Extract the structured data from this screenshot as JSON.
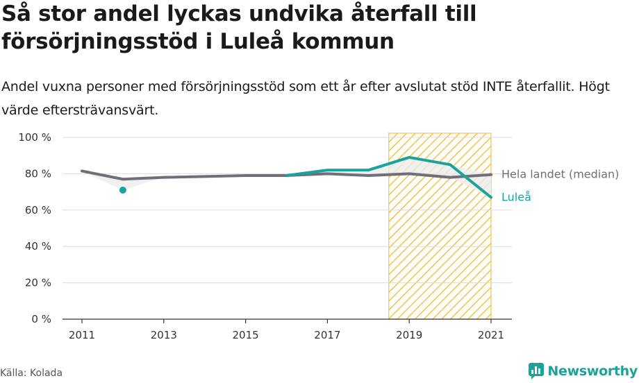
{
  "header": {
    "title": "Så stor andel lyckas undvika återfall till försörjningsstöd i Luleå kommun",
    "subtitle": "Andel vuxna personer med försörjningsstöd som ett år efter avslutat stöd INTE återfallit. Högt värde eftersträvansvärt."
  },
  "footer": {
    "source": "Källa: Kolada",
    "brand": "Newsworthy"
  },
  "colors": {
    "lulea": "#1aa39a",
    "median": "#706e76",
    "highlight": "#f5c242",
    "band": "#ececec",
    "grid": "#dcdcdc",
    "brand": "#1aa39a"
  },
  "icons": {
    "brand": "newsworthy-logo-icon"
  },
  "chart_data": {
    "type": "line",
    "xlabel": "",
    "ylabel": "",
    "ylim": [
      0,
      100
    ],
    "y_ticks": [
      "0 %",
      "20 %",
      "40 %",
      "60 %",
      "80 %",
      "100 %"
    ],
    "x_ticks": [
      "2011",
      "2013",
      "2015",
      "2017",
      "2019",
      "2021"
    ],
    "x": [
      2011,
      2012,
      2013,
      2014,
      2015,
      2016,
      2017,
      2018,
      2019,
      2020,
      2021
    ],
    "highlight_range": [
      2018.5,
      2021
    ],
    "grid": true,
    "series": [
      {
        "name": "Hela landet (median)",
        "values": [
          81.5,
          77,
          78,
          78.5,
          79,
          79,
          80,
          79,
          80,
          78,
          79.5
        ]
      },
      {
        "name": "Luleå",
        "values": [
          null,
          71,
          null,
          null,
          null,
          79,
          82,
          82,
          89,
          85,
          67
        ]
      }
    ]
  }
}
